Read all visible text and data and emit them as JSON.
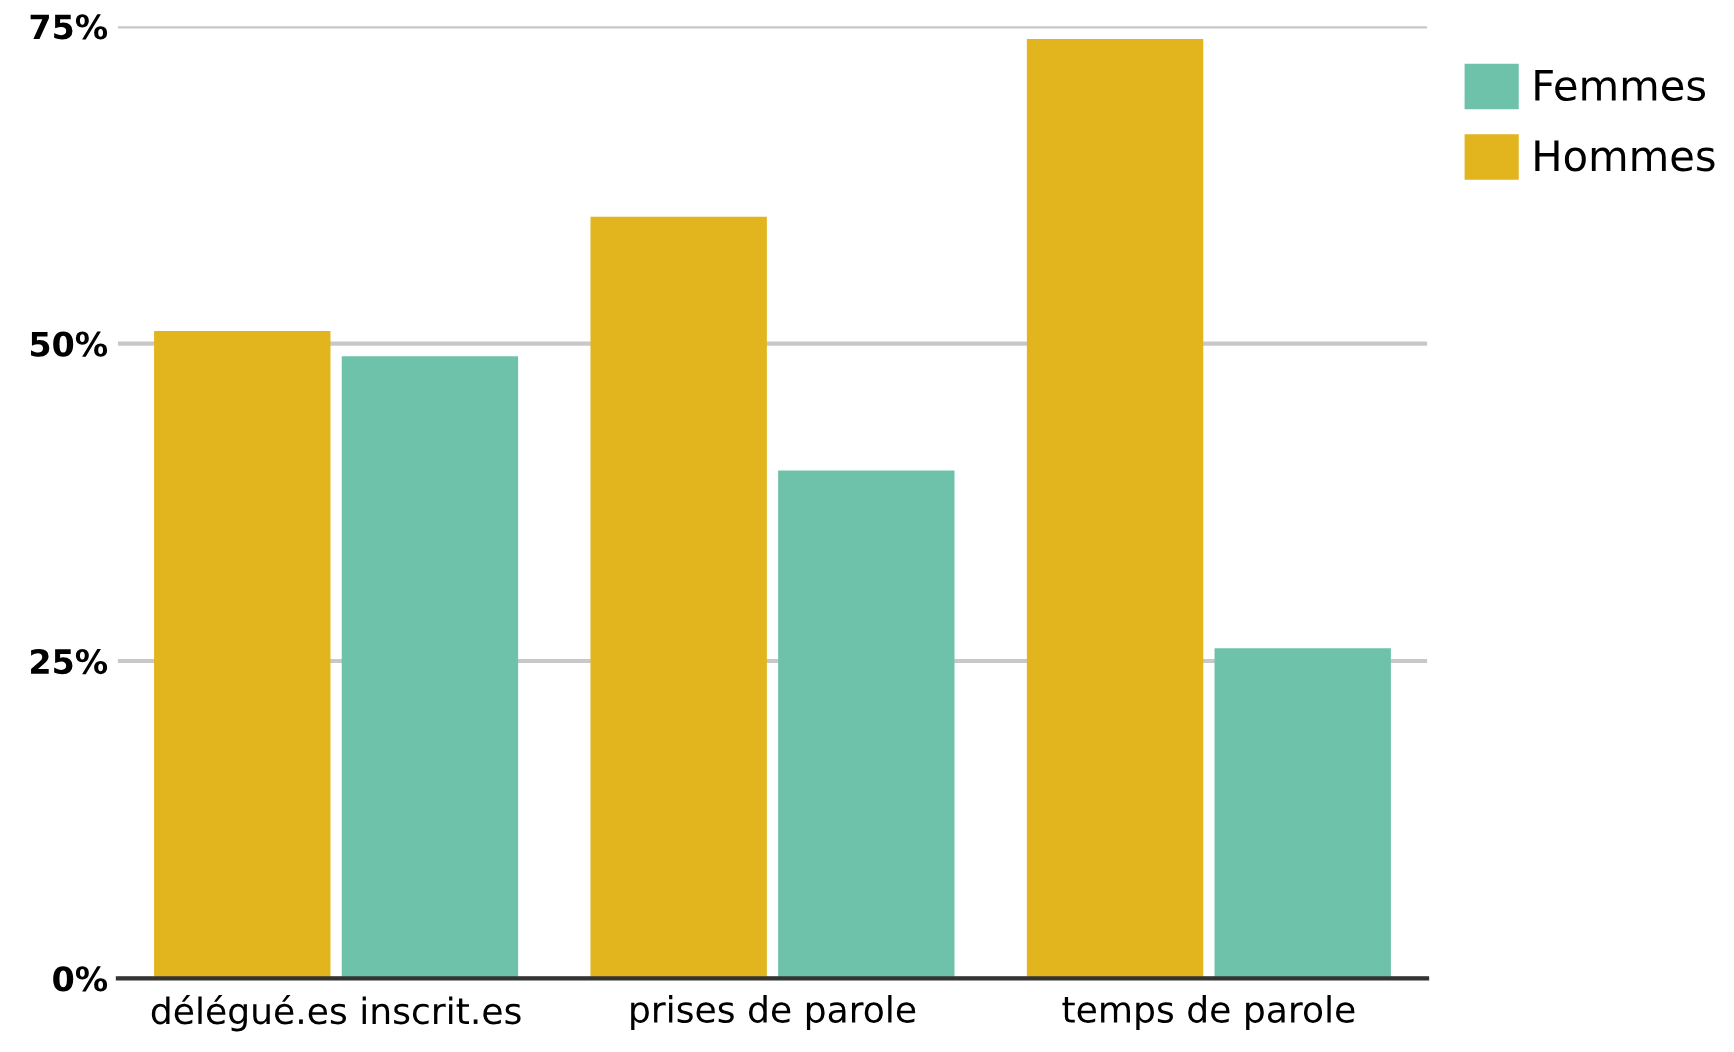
{
  "chart_data": {
    "type": "bar",
    "categories": [
      "délégué.es inscrit.es",
      "prises de parole",
      "temps de parole"
    ],
    "series": [
      {
        "name": "Hommes",
        "color": "#e2b41e",
        "values": [
          51,
          60,
          74
        ]
      },
      {
        "name": "Femmes",
        "color": "#6fc2aa",
        "values": [
          49,
          40,
          26
        ]
      }
    ],
    "ylim": [
      0,
      75
    ],
    "yticks": [
      {
        "value": 0,
        "label": "0%"
      },
      {
        "value": 25,
        "label": "25%"
      },
      {
        "value": 50,
        "label": "50%"
      },
      {
        "value": 75,
        "label": "75%"
      }
    ],
    "grid": "y",
    "legend": "top right"
  }
}
